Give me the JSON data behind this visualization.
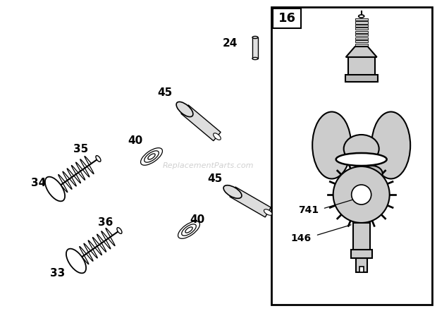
{
  "bg_color": "#ffffff",
  "fig_width": 6.2,
  "fig_height": 4.41,
  "dpi": 100,
  "watermark": "ReplacementParts.com",
  "box_label": "16"
}
